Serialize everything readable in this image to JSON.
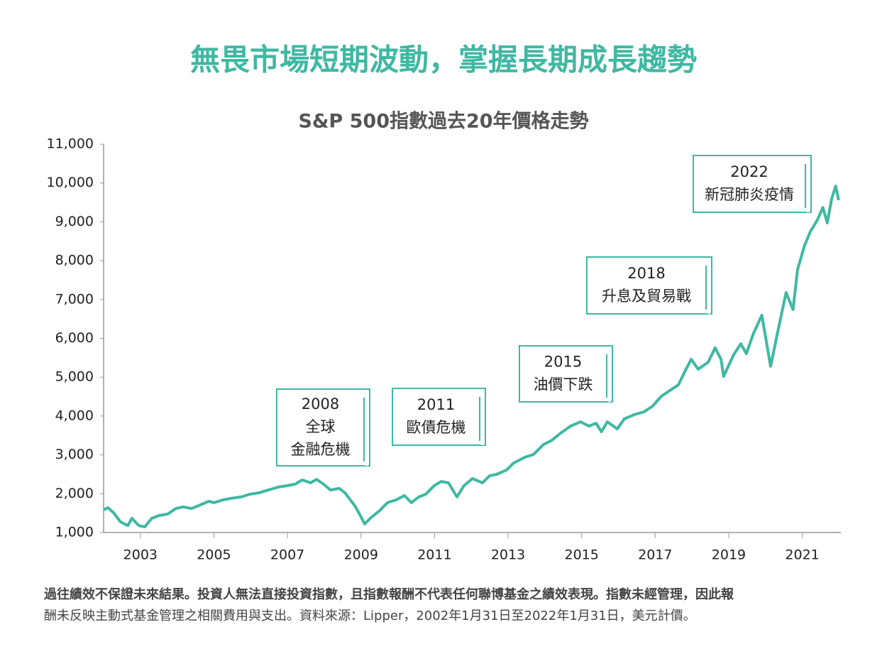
{
  "chart_data": {
    "type": "line",
    "title": "無畏市場短期波動，掌握長期成長趨勢",
    "subtitle": "S&P 500指數過去20年價格走勢",
    "xlim": [
      2002,
      2022.05
    ],
    "xticks": [
      2003,
      2005,
      2007,
      2009,
      2011,
      2013,
      2015,
      2017,
      2019,
      2021
    ],
    "ylim": [
      1000,
      11000
    ],
    "yticks": [
      {
        "value": 1000,
        "label": "1,000"
      },
      {
        "value": 2000,
        "label": "2,000"
      },
      {
        "value": 3000,
        "label": "3,000"
      },
      {
        "value": 4000,
        "label": "4,000"
      },
      {
        "value": 5000,
        "label": "5,000"
      },
      {
        "value": 6000,
        "label": "6,000"
      },
      {
        "value": 7000,
        "label": "7,000"
      },
      {
        "value": 8000,
        "label": "8,000"
      },
      {
        "value": 9000,
        "label": "9,000"
      },
      {
        "value": 10000,
        "label": "10,000"
      },
      {
        "value": 11000,
        "label": "11,000"
      }
    ],
    "grid": false,
    "series": [
      {
        "name": "S&P 500",
        "color": "#3fb8a2",
        "x": [
          2002.0,
          2002.12,
          2002.27,
          2002.46,
          2002.66,
          2002.77,
          2002.96,
          2003.12,
          2003.31,
          2003.52,
          2003.74,
          2003.97,
          2004.16,
          2004.39,
          2004.59,
          2004.86,
          2005.01,
          2005.24,
          2005.47,
          2005.74,
          2005.97,
          2006.24,
          2006.48,
          2006.75,
          2006.98,
          2007.21,
          2007.4,
          2007.63,
          2007.79,
          2007.98,
          2008.17,
          2008.41,
          2008.56,
          2008.83,
          2008.98,
          2009.1,
          2009.25,
          2009.49,
          2009.72,
          2009.95,
          2010.18,
          2010.37,
          2010.57,
          2010.76,
          2010.99,
          2011.18,
          2011.38,
          2011.61,
          2011.8,
          2012.03,
          2012.3,
          2012.5,
          2012.69,
          2012.96,
          2013.15,
          2013.46,
          2013.69,
          2013.96,
          2014.19,
          2014.43,
          2014.7,
          2014.97,
          2015.2,
          2015.39,
          2015.54,
          2015.7,
          2015.97,
          2016.16,
          2016.43,
          2016.7,
          2016.93,
          2017.17,
          2017.4,
          2017.63,
          2017.82,
          2017.98,
          2018.17,
          2018.44,
          2018.63,
          2018.79,
          2018.86,
          2019.13,
          2019.33,
          2019.48,
          2019.67,
          2019.9,
          2020.14,
          2020.33,
          2020.56,
          2020.75,
          2020.87,
          2021.06,
          2021.22,
          2021.41,
          2021.56,
          2021.68,
          2021.8,
          2021.91,
          2021.99
        ],
        "values": [
          1585,
          1640,
          1510,
          1275,
          1180,
          1365,
          1180,
          1145,
          1365,
          1440,
          1475,
          1620,
          1660,
          1620,
          1695,
          1805,
          1770,
          1840,
          1880,
          1915,
          1985,
          2025,
          2095,
          2170,
          2205,
          2245,
          2355,
          2280,
          2370,
          2245,
          2095,
          2135,
          2025,
          1695,
          1440,
          1220,
          1365,
          1550,
          1770,
          1840,
          1950,
          1770,
          1915,
          1985,
          2205,
          2315,
          2280,
          1915,
          2205,
          2390,
          2280,
          2460,
          2500,
          2610,
          2790,
          2940,
          3010,
          3265,
          3375,
          3560,
          3740,
          3850,
          3740,
          3815,
          3595,
          3850,
          3670,
          3925,
          4035,
          4110,
          4255,
          4510,
          4655,
          4800,
          5170,
          5460,
          5205,
          5385,
          5755,
          5460,
          5020,
          5570,
          5860,
          5605,
          6120,
          6595,
          5280,
          6155,
          7180,
          6740,
          7765,
          8385,
          8750,
          9045,
          9370,
          8970,
          9590,
          9920,
          9555
        ]
      }
    ],
    "annotations": [
      {
        "lines": [
          "2008",
          "全球",
          "金融危機"
        ]
      },
      {
        "lines": [
          "2011",
          "歐債危機"
        ]
      },
      {
        "lines": [
          "2015",
          "油價下跌"
        ]
      },
      {
        "lines": [
          "2018",
          "升息及貿易戰"
        ]
      },
      {
        "lines": [
          "2022",
          "新冠肺炎疫情"
        ]
      }
    ],
    "notes": [
      "過往績效不保證未來結果。投資人無法直接投資指數，且指數報酬不代表任何聯博基金之績效表現。指數未經管理，因此報",
      "酬未反映主動式基金管理之相關費用與支出。資料來源：Lipper，2002年1月31日至2022年1月31日，美元計價。"
    ]
  }
}
